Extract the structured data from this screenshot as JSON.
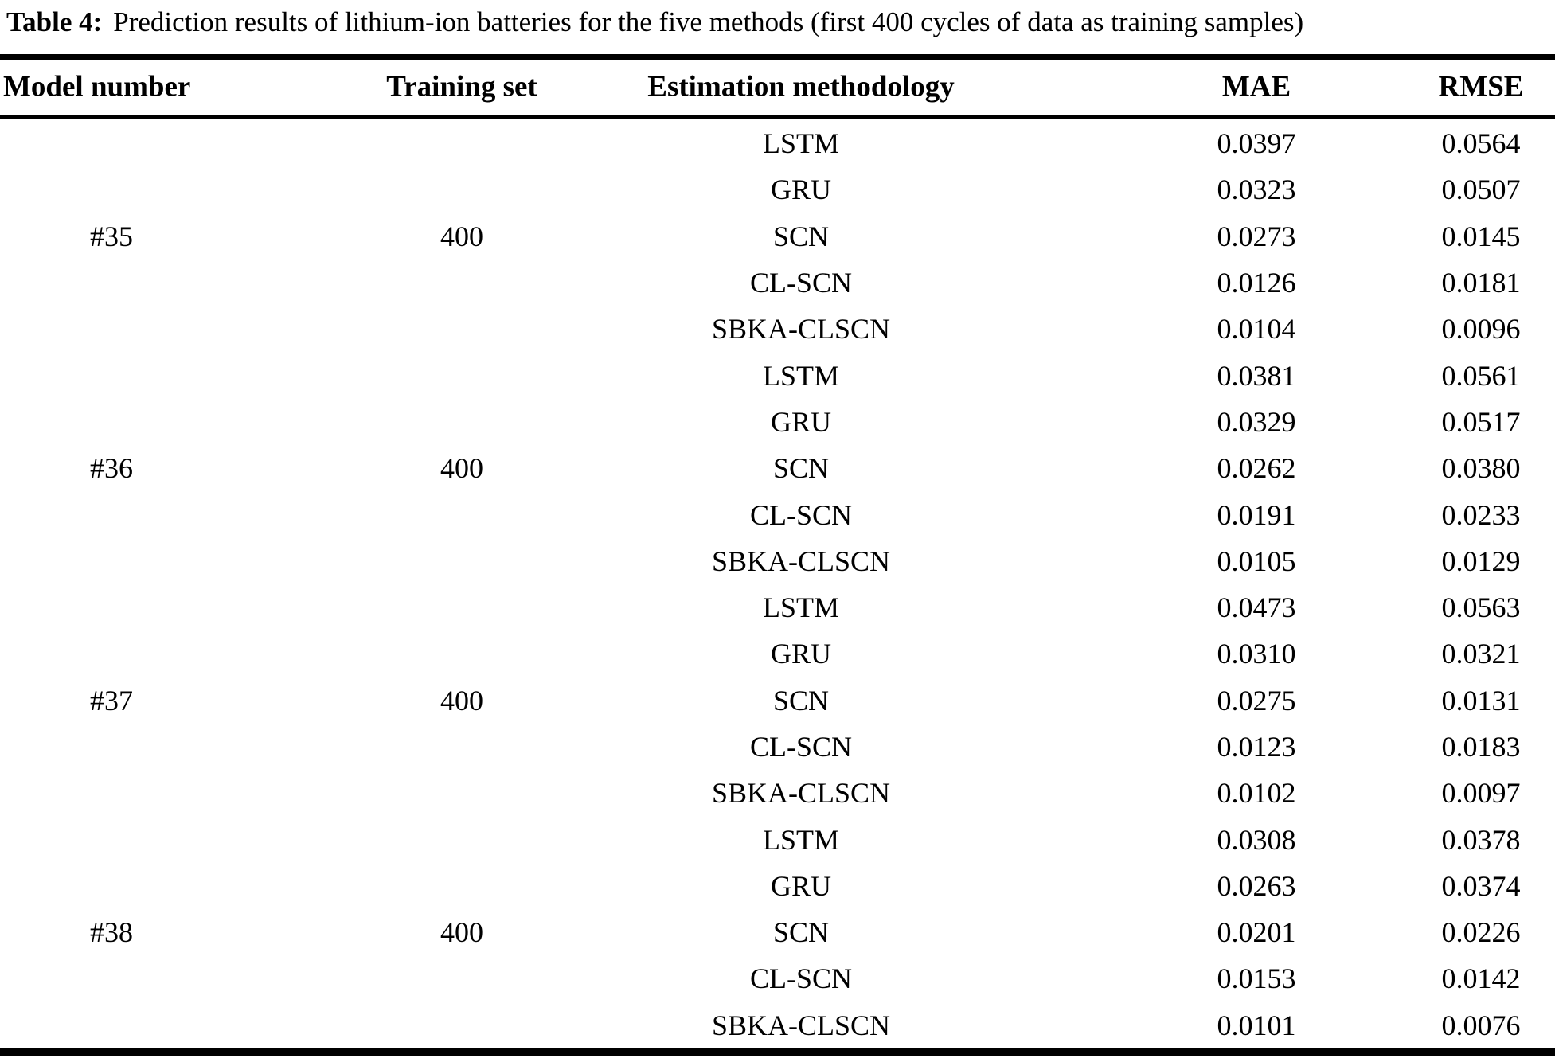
{
  "title": {
    "label": "Table 4:",
    "text": "Prediction results of lithium-ion batteries for the five methods (first 400 cycles of data as training samples)"
  },
  "table": {
    "columns": {
      "model_number": "Model number",
      "training_set": "Training set",
      "estimation_methodology": "Estimation methodology",
      "mae": "MAE",
      "rmse": "RMSE"
    },
    "groups": [
      {
        "model_number": "#35",
        "training_set": "400",
        "rows": [
          {
            "method": "LSTM",
            "mae": "0.0397",
            "rmse": "0.0564"
          },
          {
            "method": "GRU",
            "mae": "0.0323",
            "rmse": "0.0507"
          },
          {
            "method": "SCN",
            "mae": "0.0273",
            "rmse": "0.0145"
          },
          {
            "method": "CL-SCN",
            "mae": "0.0126",
            "rmse": "0.0181"
          },
          {
            "method": "SBKA-CLSCN",
            "mae": "0.0104",
            "rmse": "0.0096"
          }
        ]
      },
      {
        "model_number": "#36",
        "training_set": "400",
        "rows": [
          {
            "method": "LSTM",
            "mae": "0.0381",
            "rmse": "0.0561"
          },
          {
            "method": "GRU",
            "mae": "0.0329",
            "rmse": "0.0517"
          },
          {
            "method": "SCN",
            "mae": "0.0262",
            "rmse": "0.0380"
          },
          {
            "method": "CL-SCN",
            "mae": "0.0191",
            "rmse": "0.0233"
          },
          {
            "method": "SBKA-CLSCN",
            "mae": "0.0105",
            "rmse": "0.0129"
          }
        ]
      },
      {
        "model_number": "#37",
        "training_set": "400",
        "rows": [
          {
            "method": "LSTM",
            "mae": "0.0473",
            "rmse": "0.0563"
          },
          {
            "method": "GRU",
            "mae": "0.0310",
            "rmse": "0.0321"
          },
          {
            "method": "SCN",
            "mae": "0.0275",
            "rmse": "0.0131"
          },
          {
            "method": "CL-SCN",
            "mae": "0.0123",
            "rmse": "0.0183"
          },
          {
            "method": "SBKA-CLSCN",
            "mae": "0.0102",
            "rmse": "0.0097"
          }
        ]
      },
      {
        "model_number": "#38",
        "training_set": "400",
        "rows": [
          {
            "method": "LSTM",
            "mae": "0.0308",
            "rmse": "0.0378"
          },
          {
            "method": "GRU",
            "mae": "0.0263",
            "rmse": "0.0374"
          },
          {
            "method": "SCN",
            "mae": "0.0201",
            "rmse": "0.0226"
          },
          {
            "method": "CL-SCN",
            "mae": "0.0153",
            "rmse": "0.0142"
          },
          {
            "method": "SBKA-CLSCN",
            "mae": "0.0101",
            "rmse": "0.0076"
          }
        ]
      }
    ]
  }
}
